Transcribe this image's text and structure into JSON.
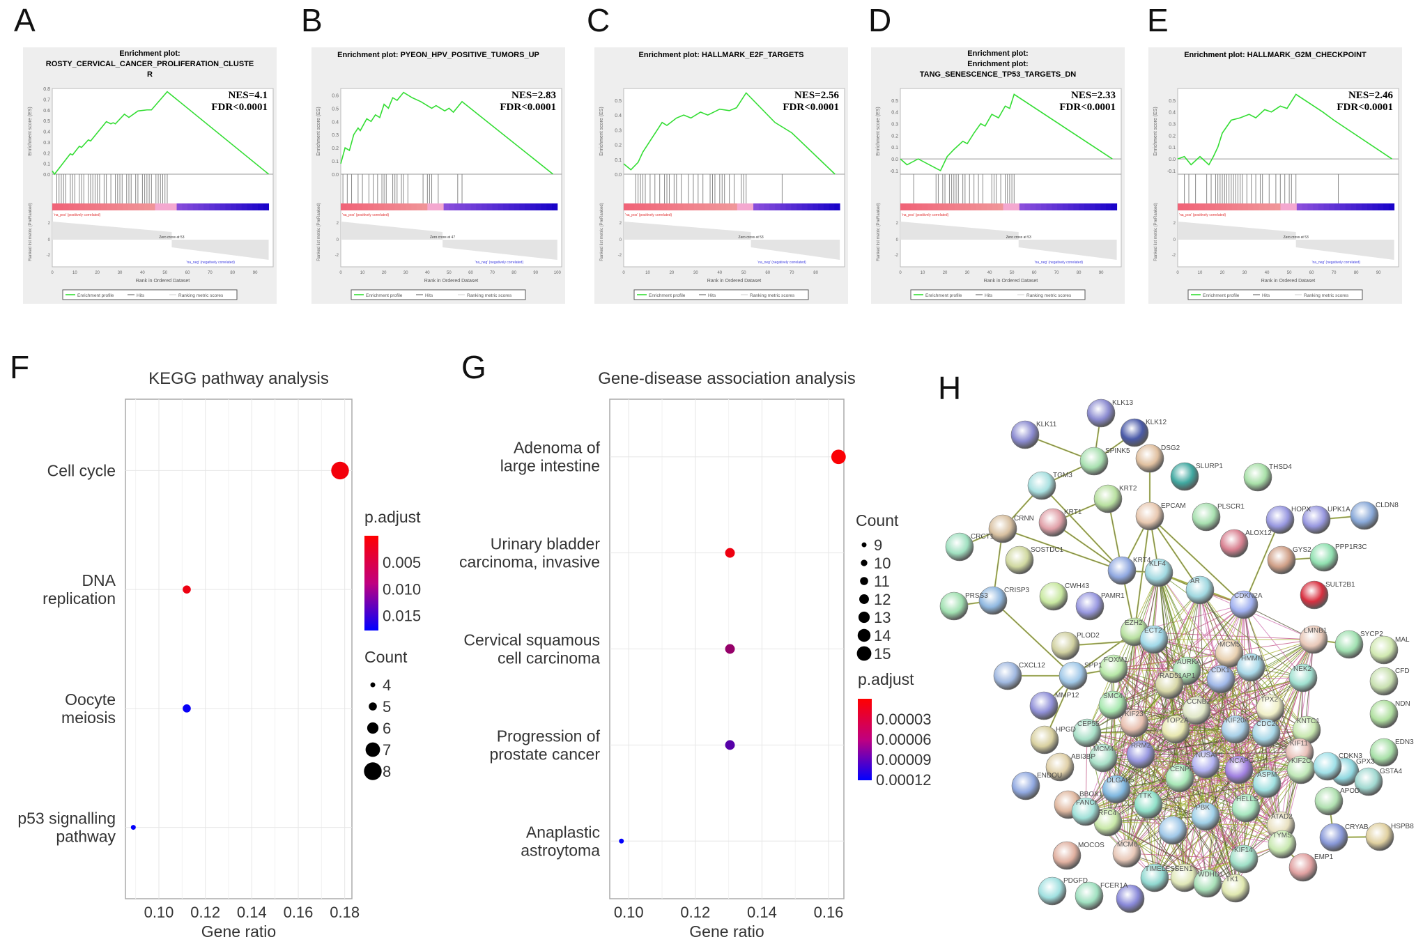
{
  "panel_labels": [
    "A",
    "B",
    "C",
    "D",
    "E",
    "F",
    "G",
    "H"
  ],
  "gsea_common": {
    "heading": "Enrichment plot:",
    "es_axis_label": "Enrichment score (ES)",
    "metric_axis_label": "Ranked list metric (PreRanked)",
    "x_axis_label": "Rank in Ordered Dataset",
    "pos_label": "'na_pos' (positively correlated)",
    "neg_label": "'na_neg' (negatively correlated)",
    "legend": [
      "Enrichment profile",
      "Hits",
      "Ranking metric scores"
    ],
    "line_color": "#33dd33"
  },
  "chart_data": [
    {
      "type": "line",
      "panel": "A",
      "title_lines": [
        "ROSTY_CERVICAL_CANCER_PROLIFERATION_CLUSTE",
        "R"
      ],
      "nes": "NES=4.1",
      "fdr": "FDR<0.0001",
      "zero_cross": "Zero cross at 53",
      "xmax": 96,
      "xticks": [
        0,
        10,
        20,
        30,
        40,
        50,
        60,
        70,
        80,
        90
      ],
      "ylim": [
        0,
        0.8
      ],
      "yticks": [
        0,
        0.1,
        0.2,
        0.3,
        0.4,
        0.5,
        0.6,
        0.7,
        0.8
      ],
      "curve": [
        [
          0,
          0.03
        ],
        [
          1,
          0
        ],
        [
          8,
          0.19
        ],
        [
          9,
          0.18
        ],
        [
          12,
          0.26
        ],
        [
          13,
          0.25
        ],
        [
          16,
          0.32
        ],
        [
          17,
          0.31
        ],
        [
          24,
          0.49
        ],
        [
          26,
          0.47
        ],
        [
          27,
          0.48
        ],
        [
          28,
          0.47
        ],
        [
          32,
          0.56
        ],
        [
          34,
          0.53
        ],
        [
          38,
          0.59
        ],
        [
          42,
          0.6
        ],
        [
          44,
          0.6
        ],
        [
          51,
          0.77
        ],
        [
          96,
          0
        ]
      ],
      "hits": [
        2,
        3,
        4,
        5,
        6,
        8,
        9,
        10,
        12,
        13,
        14,
        16,
        17,
        18,
        19,
        20,
        21,
        23,
        24,
        26,
        28,
        29,
        30,
        31,
        33,
        34,
        35,
        37,
        38,
        40,
        41,
        42,
        43,
        44,
        46,
        47,
        48,
        49,
        50,
        51
      ]
    },
    {
      "type": "line",
      "panel": "B",
      "title_lines": [
        "Enrichment plot: PYEON_HPV_POSITIVE_TUMORS_UP"
      ],
      "nes": "NES=2.83",
      "fdr": "FDR<0.0001",
      "zero_cross": "Zero cross at 47",
      "xmax": 100,
      "xticks": [
        0,
        10,
        20,
        30,
        40,
        50,
        60,
        70,
        80,
        90,
        100
      ],
      "ylim": [
        0,
        0.65
      ],
      "yticks": [
        0,
        0.1,
        0.2,
        0.3,
        0.4,
        0.5,
        0.6
      ],
      "curve": [
        [
          0,
          0.08
        ],
        [
          2,
          0.2
        ],
        [
          4,
          0.18
        ],
        [
          6,
          0.3
        ],
        [
          8,
          0.35
        ],
        [
          9,
          0.33
        ],
        [
          12,
          0.42
        ],
        [
          14,
          0.4
        ],
        [
          16,
          0.45
        ],
        [
          18,
          0.43
        ],
        [
          20,
          0.53
        ],
        [
          22,
          0.5
        ],
        [
          24,
          0.58
        ],
        [
          26,
          0.56
        ],
        [
          29,
          0.62
        ],
        [
          33,
          0.58
        ],
        [
          37,
          0.55
        ],
        [
          42,
          0.5
        ],
        [
          44,
          0.52
        ],
        [
          48,
          0.48
        ],
        [
          50,
          0.5
        ],
        [
          52,
          0.47
        ],
        [
          56,
          0.55
        ],
        [
          98,
          0
        ]
      ],
      "hits": [
        1,
        3,
        5,
        8,
        10,
        13,
        15,
        17,
        19,
        20,
        21,
        24,
        25,
        26,
        28,
        29,
        31,
        38,
        40,
        41,
        42,
        45,
        54,
        56
      ]
    },
    {
      "type": "line",
      "panel": "C",
      "title_lines": [
        "Enrichment plot: HALLMARK_E2F_TARGETS"
      ],
      "nes": "NES=2.56",
      "fdr": "FDR<0.0001",
      "zero_cross": "Zero cross at 53",
      "xmax": 90,
      "xticks": [
        0,
        10,
        20,
        30,
        40,
        50,
        60,
        70,
        80
      ],
      "ylim": [
        0,
        0.58
      ],
      "yticks": [
        0,
        0.1,
        0.2,
        0.3,
        0.4,
        0.5
      ],
      "curve": [
        [
          0,
          0.07
        ],
        [
          3,
          0.03
        ],
        [
          6,
          0.08
        ],
        [
          8,
          0.15
        ],
        [
          10,
          0.2
        ],
        [
          12,
          0.25
        ],
        [
          14,
          0.3
        ],
        [
          16,
          0.35
        ],
        [
          18,
          0.33
        ],
        [
          22,
          0.38
        ],
        [
          25,
          0.4
        ],
        [
          28,
          0.38
        ],
        [
          32,
          0.42
        ],
        [
          35,
          0.4
        ],
        [
          40,
          0.44
        ],
        [
          44,
          0.43
        ],
        [
          47,
          0.45
        ],
        [
          51,
          0.55
        ],
        [
          63,
          0.35
        ],
        [
          70,
          0.28
        ],
        [
          88,
          0
        ]
      ],
      "hits": [
        5,
        6,
        7,
        8,
        9,
        11,
        13,
        15,
        17,
        18,
        19,
        21,
        22,
        24,
        27,
        29,
        31,
        33,
        36,
        37,
        38,
        40,
        41,
        42,
        44,
        46,
        49,
        50,
        51,
        66
      ]
    },
    {
      "type": "line",
      "panel": "D",
      "title_lines": [
        "Enrichment plot:",
        "TANG_SENESCENCE_TP53_TARGETS_DN"
      ],
      "nes": "NES=2.33",
      "fdr": "FDR<0.0001",
      "zero_cross": "Zero cross at 53",
      "xmax": 97,
      "xticks": [
        0,
        10,
        20,
        30,
        40,
        50,
        60,
        70,
        80,
        90
      ],
      "ylim": [
        -0.13,
        0.6
      ],
      "yticks": [
        -0.1,
        0,
        0.1,
        0.2,
        0.3,
        0.4,
        0.5
      ],
      "curve": [
        [
          0,
          0
        ],
        [
          3,
          -0.05
        ],
        [
          8,
          0
        ],
        [
          16,
          -0.08
        ],
        [
          18,
          -0.1
        ],
        [
          21,
          0.02
        ],
        [
          24,
          0.08
        ],
        [
          28,
          0.15
        ],
        [
          30,
          0.13
        ],
        [
          33,
          0.22
        ],
        [
          36,
          0.3
        ],
        [
          38,
          0.28
        ],
        [
          41,
          0.38
        ],
        [
          44,
          0.35
        ],
        [
          47,
          0.45
        ],
        [
          49,
          0.43
        ],
        [
          51,
          0.55
        ],
        [
          95,
          0
        ]
      ],
      "hits": [
        6,
        16,
        17,
        19,
        20,
        22,
        23,
        24,
        25,
        26,
        28,
        29,
        31,
        33,
        35,
        37,
        41,
        42,
        43,
        45,
        47,
        48,
        49,
        50,
        51
      ]
    },
    {
      "type": "line",
      "panel": "E",
      "title_lines": [
        "Enrichment plot: HALLMARK_G2M_CHECKPOINT"
      ],
      "nes": "NES=2.46",
      "fdr": "FDR<0.0001",
      "zero_cross": "Zero cross at 53",
      "xmax": 97,
      "xticks": [
        0,
        10,
        20,
        30,
        40,
        50,
        60,
        70,
        80,
        90
      ],
      "ylim": [
        -0.13,
        0.6
      ],
      "yticks": [
        -0.1,
        0,
        0.1,
        0.2,
        0.3,
        0.4,
        0.5
      ],
      "curve": [
        [
          0,
          0
        ],
        [
          3,
          0.02
        ],
        [
          6,
          -0.05
        ],
        [
          10,
          0.02
        ],
        [
          14,
          -0.05
        ],
        [
          16,
          0.02
        ],
        [
          18,
          0.1
        ],
        [
          20,
          0.22
        ],
        [
          24,
          0.33
        ],
        [
          28,
          0.35
        ],
        [
          32,
          0.38
        ],
        [
          35,
          0.35
        ],
        [
          39,
          0.42
        ],
        [
          42,
          0.4
        ],
        [
          46,
          0.45
        ],
        [
          49,
          0.43
        ],
        [
          53,
          0.55
        ],
        [
          65,
          0.4
        ],
        [
          70,
          0.33
        ],
        [
          96,
          0
        ]
      ],
      "hits": [
        3,
        5,
        8,
        13,
        15,
        17,
        18,
        19,
        20,
        21,
        22,
        23,
        24,
        25,
        26,
        27,
        28,
        29,
        31,
        33,
        35,
        37,
        38,
        41,
        44,
        46,
        48,
        50,
        51,
        53,
        72
      ]
    },
    {
      "type": "scatter",
      "panel": "F",
      "title": "KEGG pathway analysis",
      "xlabel": "Gene ratio",
      "xlim": [
        0.0856,
        0.1831
      ],
      "xticks": [
        0.1,
        0.12,
        0.14,
        0.16,
        0.18
      ],
      "xtick_labels": [
        "0.10",
        "0.12",
        "0.14",
        "0.16",
        "0.18"
      ],
      "categories": [
        "Cell cycle",
        "DNA\nreplication",
        "Oocyte\nmeiosis",
        "p53 signalling\npathway"
      ],
      "points": [
        {
          "gene_ratio": 0.178,
          "count": 8,
          "p_adjust": 0.0008
        },
        {
          "gene_ratio": 0.112,
          "count": 5,
          "p_adjust": 0.0012
        },
        {
          "gene_ratio": 0.112,
          "count": 5,
          "p_adjust": 0.0172
        },
        {
          "gene_ratio": 0.089,
          "count": 4,
          "p_adjust": 0.0176
        }
      ],
      "color_legend": {
        "title": "p.adjust",
        "range": [
          0,
          0.0178
        ],
        "ticks": [
          0.005,
          0.01,
          0.015
        ],
        "tick_labels": [
          "0.005",
          "0.010",
          "0.015"
        ]
      },
      "size_legend": {
        "title": "Count",
        "values": [
          4,
          5,
          6,
          7,
          8
        ],
        "labels": [
          "4",
          "5",
          "6",
          "7",
          "8"
        ]
      }
    },
    {
      "type": "scatter",
      "panel": "G",
      "title": "Gene-disease association analysis",
      "xlabel": "Gene ratio",
      "xlim": [
        0.0943,
        0.1646
      ],
      "xticks": [
        0.1,
        0.12,
        0.14,
        0.16
      ],
      "xtick_labels": [
        "0.10",
        "0.12",
        "0.14",
        "0.16"
      ],
      "categories": [
        "Adenoma of\nlarge intestine",
        "Urinary bladder\ncarcinoma, invasive",
        "Cervical squamous\ncell carcinoma",
        "Progression of\nprostate cancer",
        "Anaplastic\nastroytoma"
      ],
      "points": [
        {
          "gene_ratio": 0.163,
          "count": 15,
          "p_adjust": 2e-06
        },
        {
          "gene_ratio": 0.1304,
          "count": 12,
          "p_adjust": 8e-06
        },
        {
          "gene_ratio": 0.1304,
          "count": 12,
          "p_adjust": 5e-05
        },
        {
          "gene_ratio": 0.1304,
          "count": 12,
          "p_adjust": 8e-05
        },
        {
          "gene_ratio": 0.0978,
          "count": 9,
          "p_adjust": 0.00012
        }
      ],
      "color_legend": {
        "title": "p.adjust",
        "range": [
          0,
          0.000121
        ],
        "ticks": [
          3e-05,
          6e-05,
          9e-05,
          0.00012
        ],
        "tick_labels": [
          "0.00003",
          "0.00006",
          "0.00009",
          "0.00012"
        ]
      },
      "size_legend": {
        "title": "Count",
        "values": [
          9,
          10,
          11,
          12,
          13,
          14,
          15
        ],
        "labels": [
          "9",
          "10",
          "11",
          "12",
          "13",
          "14",
          "15"
        ]
      }
    }
  ],
  "network": {
    "nodes": [
      "KLK13",
      "KLK11",
      "KLK12",
      "SPINK5",
      "DSG2",
      "TGM3",
      "SLURP1",
      "THSD4",
      "KRT2",
      "KRT1",
      "CRNN",
      "EPCAM",
      "PLSCR1",
      "HOPX",
      "UPK1A",
      "CLDN8",
      "CRCT1",
      "SOSTDC1",
      "ALOX12",
      "GYS2",
      "PPP1R3C",
      "KRT4",
      "KLF4",
      "AR",
      "SULT2B1",
      "CDKN2A",
      "PRSS3",
      "CRISP3",
      "CWH43",
      "PAMR1",
      "EZH2",
      "ECT2",
      "PLOD2",
      "LMNB1",
      "SYCP2",
      "MAL",
      "MCM5",
      "CXCL12",
      "SPP1",
      "MMP12",
      "CFD",
      "NDN",
      "HPGD",
      "EDN3",
      "ABI3BP",
      "GPX3",
      "GSTA4",
      "ENDOU",
      "APOD",
      "BBOX1",
      "CRYAB",
      "HSPB8",
      "MOCOS",
      "PDGFD",
      "FCER1A",
      "FOXM1",
      "AURKA",
      "RAD51AP1",
      "CDK1",
      "HMMR",
      "NEK2",
      "SMC4",
      "CCNB2",
      "TPX2",
      "KIF23",
      "TOP2A",
      "KIF20A",
      "CDC20",
      "KNTC1",
      "CEP55",
      "MCM4",
      "RRM2",
      "NUSAP1",
      "NCAPG",
      "KIF11",
      "KIF2C",
      "CDKN3",
      "CENPF",
      "DLGAP5",
      "TTK",
      "ASPM",
      "HELLS",
      "PBK",
      "RFC4",
      "FANCI",
      "ATAD2",
      "TYMS",
      "MCM6",
      "KIF14",
      "EMP1",
      "TIMELESS",
      "FEN1",
      "WDHD1",
      "TK1"
    ]
  }
}
